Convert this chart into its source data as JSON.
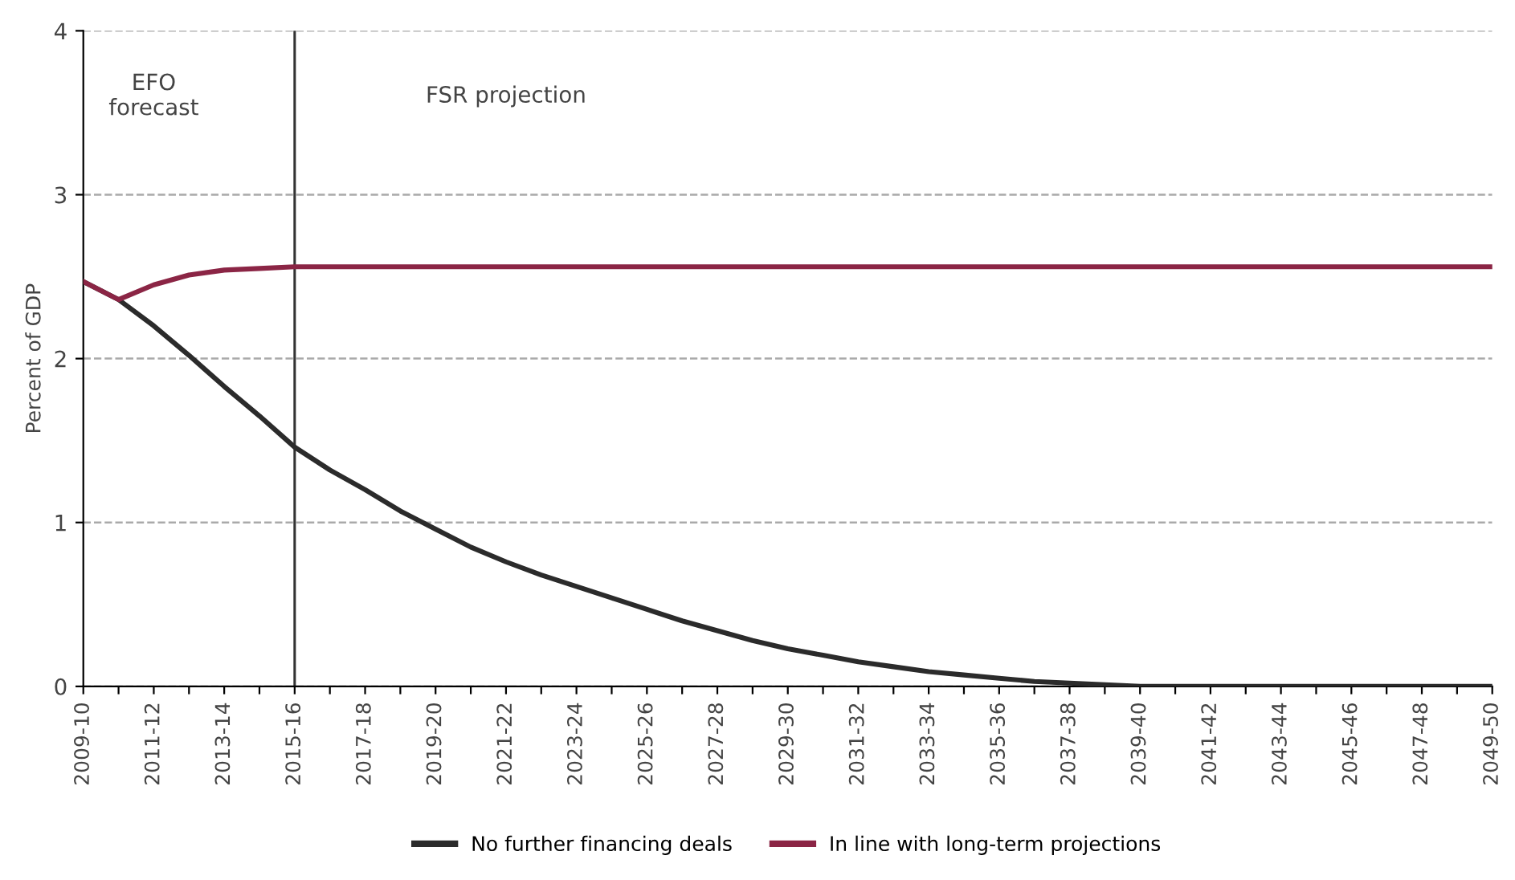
{
  "chart_data": {
    "type": "line",
    "ylabel": "Percent of GDP",
    "categories": [
      "2009-10",
      null,
      "2011-12",
      null,
      "2013-14",
      null,
      "2015-16",
      null,
      "2017-18",
      null,
      "2019-20",
      null,
      "2021-22",
      null,
      "2023-24",
      null,
      "2025-26",
      null,
      "2027-28",
      null,
      "2029-30",
      null,
      "2031-32",
      null,
      "2033-34",
      null,
      "2035-36",
      null,
      "2037-38",
      null,
      "2039-40",
      null,
      "2041-42",
      null,
      "2043-44",
      null,
      "2045-46",
      null,
      "2047-48",
      null,
      "2049-50"
    ],
    "series": [
      {
        "name": "No further financing deals",
        "color": "#2b2b2b",
        "values": [
          2.47,
          2.36,
          2.2,
          2.02,
          1.83,
          1.65,
          1.46,
          1.32,
          1.2,
          1.07,
          0.96,
          0.85,
          0.76,
          0.68,
          0.61,
          0.54,
          0.47,
          0.4,
          0.34,
          0.28,
          0.23,
          0.19,
          0.15,
          0.12,
          0.09,
          0.07,
          0.05,
          0.03,
          0.02,
          0.01,
          0,
          0,
          0,
          0,
          0,
          0,
          0,
          0,
          0,
          0,
          0
        ]
      },
      {
        "name": "In line with long-term projections",
        "color": "#8b2545",
        "values": [
          2.47,
          2.36,
          2.45,
          2.51,
          2.54,
          2.55,
          2.56,
          2.56,
          2.56,
          2.56,
          2.56,
          2.56,
          2.56,
          2.56,
          2.56,
          2.56,
          2.56,
          2.56,
          2.56,
          2.56,
          2.56,
          2.56,
          2.56,
          2.56,
          2.56,
          2.56,
          2.56,
          2.56,
          2.56,
          2.56,
          2.56,
          2.56,
          2.56,
          2.56,
          2.56,
          2.56,
          2.56,
          2.56,
          2.56,
          2.56,
          2.56
        ]
      }
    ],
    "ylim": [
      0,
      4
    ],
    "yticks": [
      0,
      1,
      2,
      3,
      4
    ],
    "grid": "y",
    "legend": "bottom",
    "line_style": "solid",
    "marker": "none",
    "ref_lines": [
      {
        "axis": "x",
        "value": "2015-16",
        "color": "#333333"
      }
    ],
    "annotations": [
      "EFO\nforecast",
      "FSR projection"
    ]
  }
}
